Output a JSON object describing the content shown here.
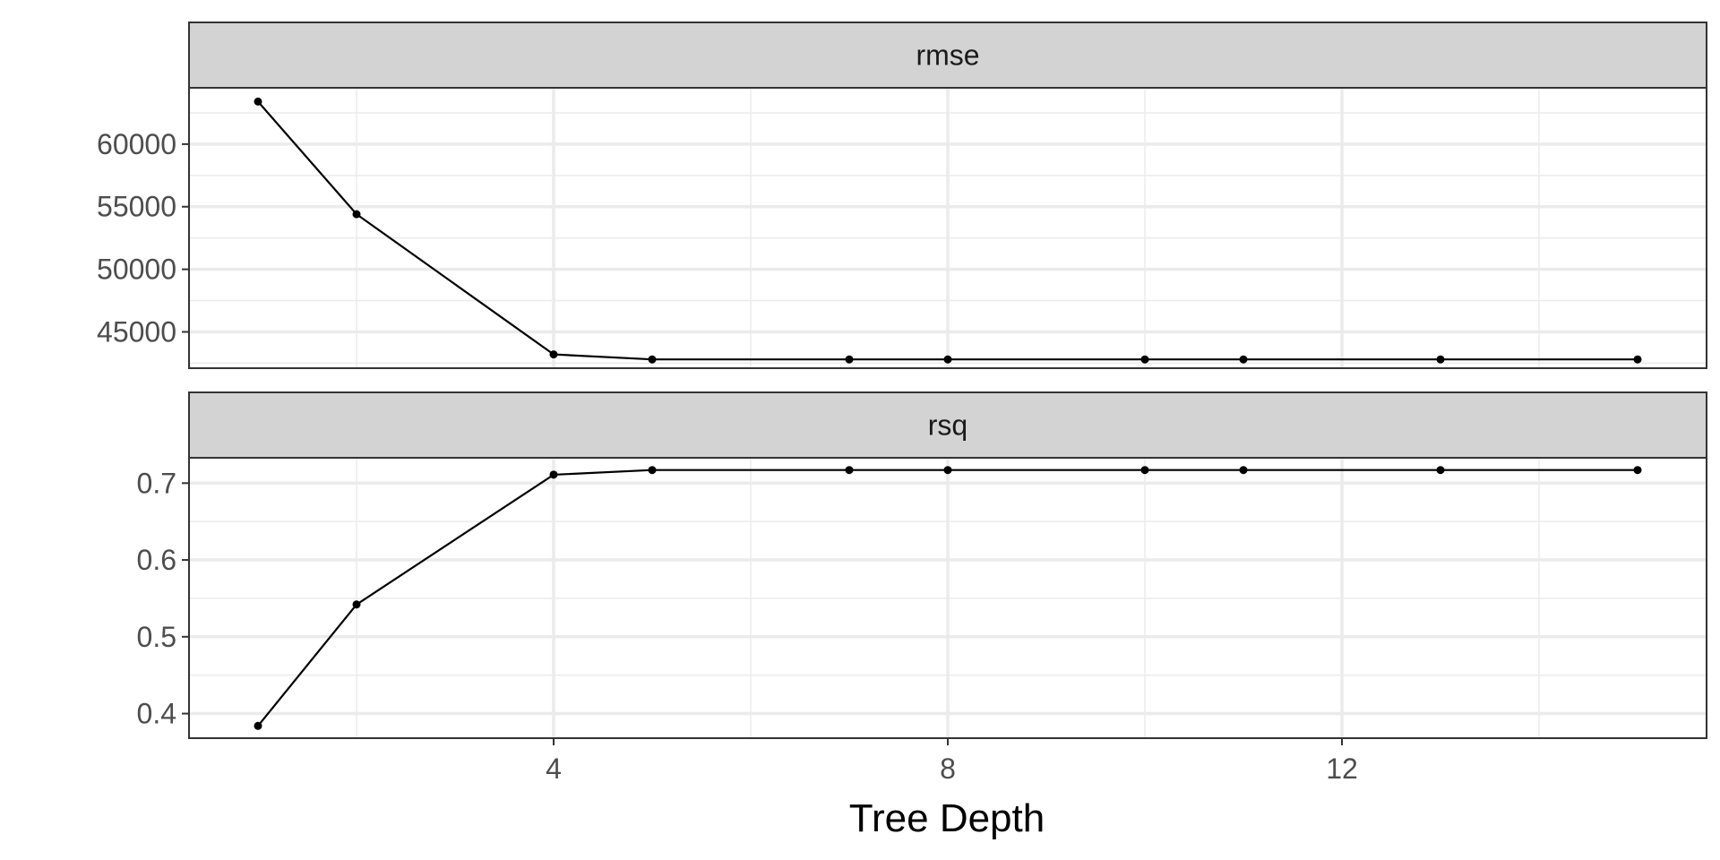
{
  "chart_data": {
    "type": "line",
    "xlabel": "Tree Depth",
    "x_ticks": [
      4,
      8,
      12
    ],
    "xlim": [
      0.3,
      15.7
    ],
    "colors": {
      "line": "#000000",
      "strip": "#d3d3d3",
      "grid": "#ebebeb"
    },
    "panels": [
      {
        "strip": "rmse",
        "ylim": [
          42100,
          64500
        ],
        "y_ticks": [
          45000,
          50000,
          55000,
          60000
        ],
        "y_tick_labels": [
          "45000",
          "50000",
          "55000",
          "60000"
        ],
        "x": [
          1,
          2,
          4,
          5,
          7,
          8,
          10,
          11,
          13,
          15
        ],
        "y": [
          63400,
          54400,
          43200,
          42800,
          42800,
          42800,
          42800,
          42800,
          42800,
          42800
        ]
      },
      {
        "strip": "rsq",
        "ylim": [
          0.368,
          0.733
        ],
        "y_ticks": [
          0.4,
          0.5,
          0.6,
          0.7
        ],
        "y_tick_labels": [
          "0.4",
          "0.5",
          "0.6",
          "0.7"
        ],
        "x": [
          1,
          2,
          4,
          5,
          7,
          8,
          10,
          11,
          13,
          15
        ],
        "y": [
          0.384,
          0.542,
          0.711,
          0.717,
          0.717,
          0.717,
          0.717,
          0.717,
          0.717,
          0.717
        ]
      }
    ]
  }
}
